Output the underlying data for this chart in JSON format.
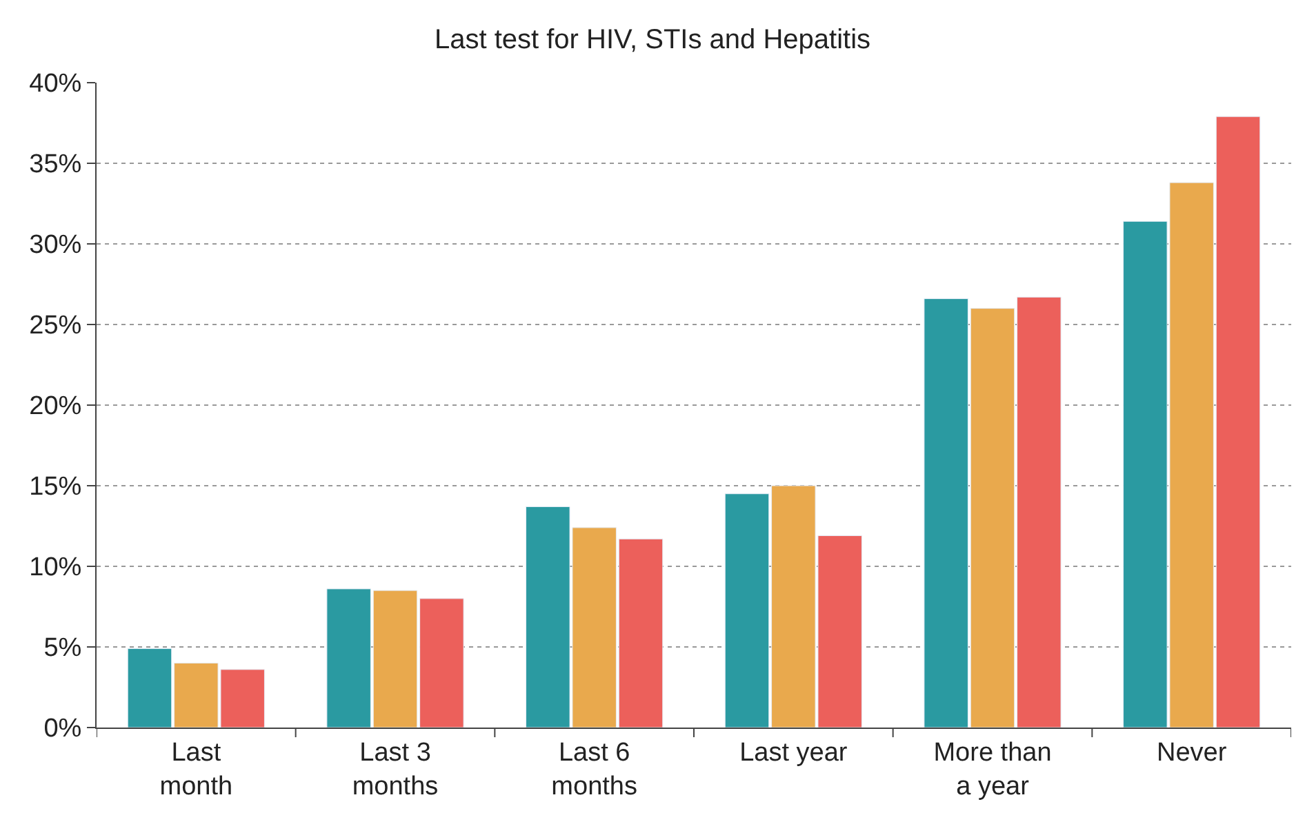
{
  "chart_data": {
    "type": "bar",
    "title": "Last test for HIV, STIs and Hepatitis",
    "categories": [
      "Last month",
      "Last 3 months",
      "Last 6 months",
      "Last year",
      "More than a year",
      "Never"
    ],
    "series": [
      {
        "color": "#2a9aa1",
        "values": [
          4.9,
          8.6,
          13.7,
          14.5,
          26.6,
          31.4
        ]
      },
      {
        "color": "#e9a94d",
        "values": [
          4.0,
          8.5,
          12.4,
          15.0,
          26.0,
          33.8
        ]
      },
      {
        "color": "#ec605b",
        "values": [
          3.6,
          8.0,
          11.7,
          11.9,
          26.7,
          37.9
        ]
      }
    ],
    "ylim": [
      0,
      40
    ],
    "yticks": [
      {
        "value": 0,
        "label": "0%"
      },
      {
        "value": 5,
        "label": "5%"
      },
      {
        "value": 10,
        "label": "10%"
      },
      {
        "value": 15,
        "label": "15%"
      },
      {
        "value": 20,
        "label": "20%"
      },
      {
        "value": 25,
        "label": "25%"
      },
      {
        "value": 30,
        "label": "30%"
      },
      {
        "value": 35,
        "label": "35%"
      },
      {
        "value": 40,
        "label": "40%"
      }
    ],
    "grid": "y"
  }
}
